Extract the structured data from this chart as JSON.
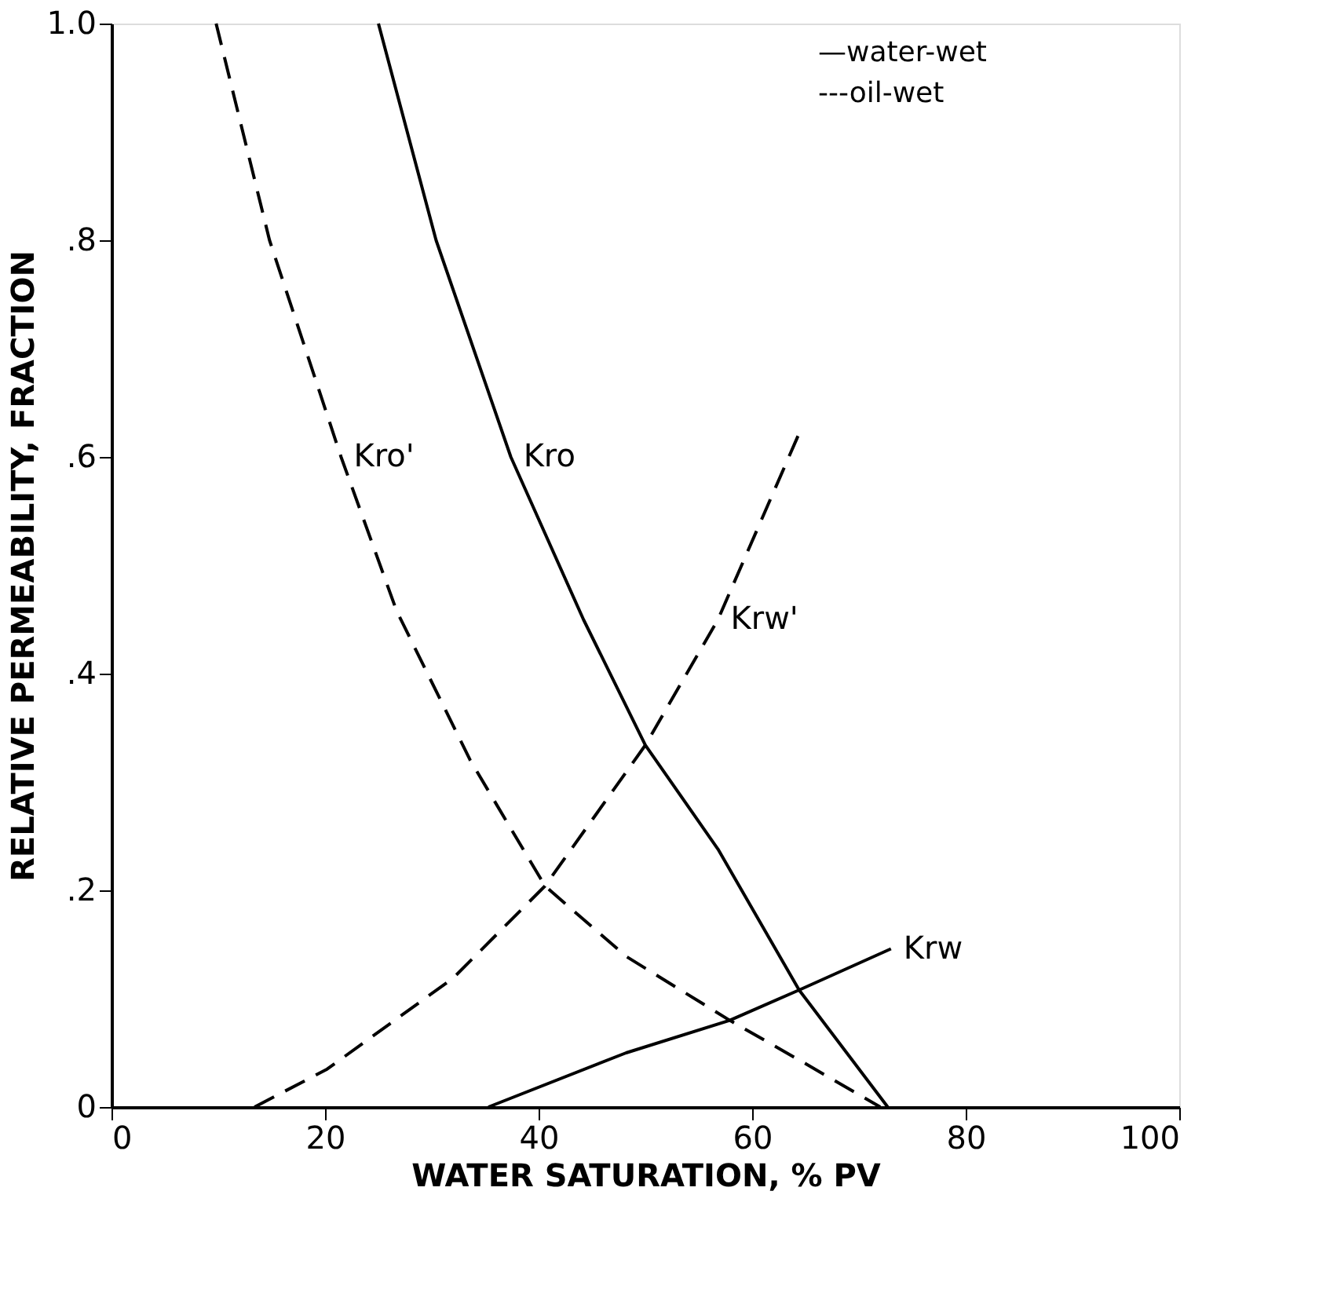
{
  "chart_data": {
    "type": "line",
    "xlabel": "WATER SATURATION, % PV",
    "ylabel": "RELATIVE PERMEABILITY, FRACTION",
    "xlim": [
      0,
      100
    ],
    "xticks": [
      0,
      20,
      40,
      60,
      80,
      100
    ],
    "ylim": [
      0,
      1
    ],
    "yticks": [
      {
        "value": 0,
        "label": "0"
      },
      {
        "value": 0.2,
        "label": ".2"
      },
      {
        "value": 0.4,
        "label": ".4"
      },
      {
        "value": 0.6,
        "label": ".6"
      },
      {
        "value": 0.8,
        "label": ".8"
      },
      {
        "value": 1,
        "label": "1.0"
      }
    ],
    "grid": false,
    "series": [
      {
        "color": "#000000",
        "line_style": "solid",
        "x": [
          25,
          30.4,
          37.4,
          44.2,
          50,
          56.8,
          64.4,
          72.7
        ],
        "values": [
          1,
          0.8,
          0.6,
          0.45,
          0.334,
          0.238,
          0.108,
          0
        ]
      },
      {
        "color": "#000000",
        "line_style": "dashed",
        "x": [
          9.8,
          14.8,
          21.5,
          26.7,
          33.6,
          40.6,
          48.2,
          57.9,
          65,
          72
        ],
        "values": [
          1,
          0.8,
          0.6,
          0.458,
          0.32,
          0.204,
          0.139,
          0.08,
          0.04,
          0
        ]
      },
      {
        "color": "#000000",
        "line_style": "dashed",
        "x": [
          13.4,
          20.2,
          32,
          40.6,
          50,
          56.8,
          64.5
        ],
        "values": [
          0,
          0.035,
          0.119,
          0.204,
          0.334,
          0.45,
          0.624
        ]
      },
      {
        "color": "#000000",
        "line_style": "solid",
        "x": [
          35.3,
          48.2,
          57.9,
          64.4,
          73
        ],
        "values": [
          0,
          0.05,
          0.08,
          0.108,
          0.146
        ]
      }
    ],
    "annotations": [
      {
        "text": "Kro",
        "x": 37.4,
        "y": 0.6
      },
      {
        "text": "Kro'",
        "x": 21.5,
        "y": 0.6
      },
      {
        "text": "Krw'",
        "x": 56.8,
        "y": 0.45
      },
      {
        "text": "Krw",
        "x": 73,
        "y": 0.146
      },
      "—water-wet",
      "---oil-wet"
    ]
  }
}
